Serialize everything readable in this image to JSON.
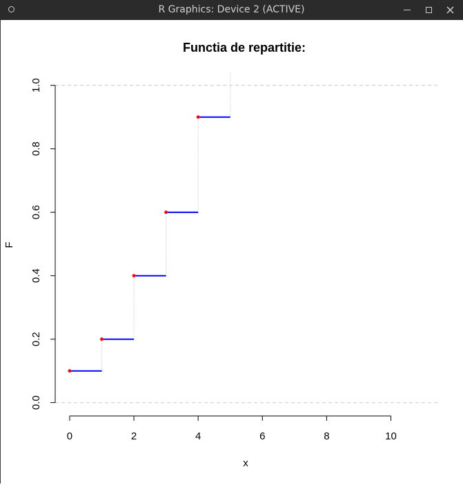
{
  "window": {
    "title": "R Graphics: Device 2 (ACTIVE)",
    "icons": [
      "window-menu-icon",
      "minimize-icon",
      "maximize-icon",
      "close-icon"
    ]
  },
  "chart_data": {
    "type": "line",
    "title": "Functia de repartitie:",
    "xlabel": "x",
    "ylabel": "F",
    "xlim": [
      -0.45,
      11.45
    ],
    "ylim": [
      -0.005,
      1.045
    ],
    "x_ticks": [
      "0",
      "2",
      "4",
      "6",
      "8",
      "10"
    ],
    "x_tick_values": [
      0,
      2,
      4,
      6,
      8,
      10
    ],
    "y_ticks": [
      "0.0",
      "0.2",
      "0.4",
      "0.6",
      "0.8",
      "1.0"
    ],
    "y_tick_values": [
      0,
      0.2,
      0.4,
      0.6,
      0.8,
      1.0
    ],
    "hlines_dashed": [
      0,
      1
    ],
    "steps": [
      {
        "x_start": 0,
        "x_end": 1,
        "y": 0.1
      },
      {
        "x_start": 1,
        "x_end": 2,
        "y": 0.2
      },
      {
        "x_start": 2,
        "x_end": 3,
        "y": 0.4
      },
      {
        "x_start": 3,
        "x_end": 4,
        "y": 0.6
      },
      {
        "x_start": 4,
        "x_end": 5,
        "y": 0.9
      }
    ],
    "jumps_dotted": [
      {
        "x": 1,
        "y_from": 0.1,
        "y_to": 0.2
      },
      {
        "x": 2,
        "y_from": 0.2,
        "y_to": 0.4
      },
      {
        "x": 3,
        "y_from": 0.4,
        "y_to": 0.6
      },
      {
        "x": 4,
        "y_from": 0.6,
        "y_to": 0.9
      },
      {
        "x": 5,
        "y_from": 0.9,
        "y_to": 1.045
      }
    ],
    "points": [
      {
        "x": 0,
        "y": 0.1
      },
      {
        "x": 1,
        "y": 0.2
      },
      {
        "x": 2,
        "y": 0.4
      },
      {
        "x": 3,
        "y": 0.6
      },
      {
        "x": 4,
        "y": 0.9
      }
    ],
    "colors": {
      "step": "#0000ff",
      "point": "#ff0000",
      "guide": "#c8c8c8"
    },
    "grid": false
  }
}
